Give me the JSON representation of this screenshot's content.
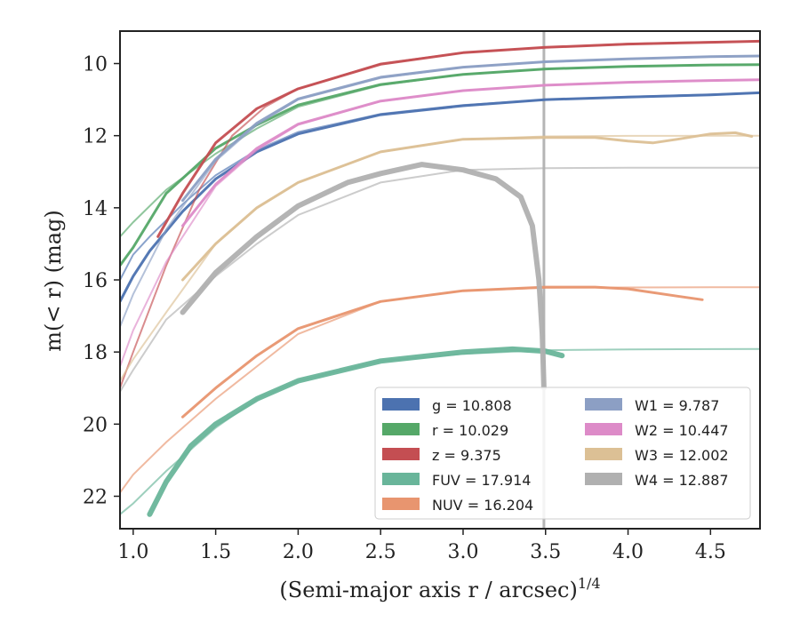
{
  "chart_data": {
    "type": "line",
    "xlabel": "(Semi-major axis r / arcsec)",
    "xlabel_sup": "1/4",
    "ylabel": "m(< r) (mag)",
    "xlim": [
      0.92,
      4.8
    ],
    "ylim": [
      22.9,
      9.1
    ],
    "y_inverted": true,
    "xticks": [
      1.0,
      1.5,
      2.0,
      2.5,
      3.0,
      3.5,
      4.0,
      4.5
    ],
    "xtick_labels": [
      "1.0",
      "1.5",
      "2.0",
      "2.5",
      "3.0",
      "3.5",
      "4.0",
      "4.5"
    ],
    "yticks": [
      10,
      12,
      14,
      16,
      18,
      20,
      22
    ],
    "ytick_labels": [
      "10",
      "12",
      "14",
      "16",
      "18",
      "20",
      "22"
    ],
    "grid": false,
    "legend_position": "lower-right",
    "vline_x": 3.49,
    "series": [
      {
        "name": "g",
        "label": "g = 10.808",
        "color": "#4c72b0",
        "model": [
          [
            0.92,
            16.0
          ],
          [
            1.0,
            15.3
          ],
          [
            1.1,
            14.8
          ],
          [
            1.3,
            13.9
          ],
          [
            1.5,
            13.1
          ],
          [
            1.75,
            12.4
          ],
          [
            2.0,
            11.9
          ],
          [
            2.5,
            11.4
          ],
          [
            3.0,
            11.15
          ],
          [
            3.5,
            11.0
          ],
          [
            4.0,
            10.92
          ],
          [
            4.5,
            10.86
          ],
          [
            4.8,
            10.808
          ]
        ],
        "observed": [
          [
            0.92,
            16.6
          ],
          [
            1.0,
            15.9
          ],
          [
            1.1,
            15.2
          ],
          [
            1.3,
            14.1
          ],
          [
            1.5,
            13.2
          ],
          [
            1.75,
            12.45
          ],
          [
            2.0,
            11.95
          ],
          [
            2.5,
            11.42
          ],
          [
            3.0,
            11.17
          ],
          [
            3.5,
            11.0
          ],
          [
            4.0,
            10.93
          ],
          [
            4.5,
            10.87
          ],
          [
            4.8,
            10.81
          ]
        ]
      },
      {
        "name": "r",
        "label": "r = 10.029",
        "color": "#55a868",
        "model": [
          [
            0.92,
            14.8
          ],
          [
            1.0,
            14.4
          ],
          [
            1.2,
            13.5
          ],
          [
            1.5,
            12.5
          ],
          [
            1.75,
            11.8
          ],
          [
            2.0,
            11.2
          ],
          [
            2.5,
            10.6
          ],
          [
            3.0,
            10.3
          ],
          [
            3.5,
            10.15
          ],
          [
            4.0,
            10.08
          ],
          [
            4.5,
            10.04
          ],
          [
            4.8,
            10.029
          ]
        ],
        "observed": [
          [
            0.92,
            15.6
          ],
          [
            1.0,
            15.1
          ],
          [
            1.2,
            13.6
          ],
          [
            1.5,
            12.35
          ],
          [
            1.75,
            11.7
          ],
          [
            2.0,
            11.15
          ],
          [
            2.5,
            10.58
          ],
          [
            3.0,
            10.3
          ],
          [
            3.5,
            10.15
          ],
          [
            4.0,
            10.08
          ],
          [
            4.5,
            10.04
          ],
          [
            4.8,
            10.03
          ]
        ]
      },
      {
        "name": "z",
        "label": "z = 9.375",
        "color": "#c44e52",
        "model": [
          [
            0.92,
            19.0
          ],
          [
            1.0,
            18.0
          ],
          [
            1.2,
            15.6
          ],
          [
            1.4,
            13.5
          ],
          [
            1.6,
            12.0
          ],
          [
            1.8,
            11.2
          ],
          [
            2.0,
            10.7
          ],
          [
            2.5,
            10.0
          ],
          [
            3.0,
            9.7
          ],
          [
            3.5,
            9.55
          ],
          [
            4.0,
            9.45
          ],
          [
            4.5,
            9.4
          ],
          [
            4.8,
            9.375
          ]
        ],
        "observed": [
          [
            1.15,
            14.8
          ],
          [
            1.3,
            13.6
          ],
          [
            1.5,
            12.2
          ],
          [
            1.75,
            11.25
          ],
          [
            2.0,
            10.7
          ],
          [
            2.5,
            10.02
          ],
          [
            3.0,
            9.7
          ],
          [
            3.5,
            9.55
          ],
          [
            4.0,
            9.46
          ],
          [
            4.5,
            9.41
          ],
          [
            4.8,
            9.38
          ]
        ]
      },
      {
        "name": "FUV",
        "label": "FUV = 17.914",
        "color": "#69b59a",
        "model": [
          [
            0.92,
            22.5
          ],
          [
            1.0,
            22.2
          ],
          [
            1.2,
            21.3
          ],
          [
            1.5,
            20.1
          ],
          [
            1.75,
            19.3
          ],
          [
            2.0,
            18.8
          ],
          [
            2.5,
            18.25
          ],
          [
            3.0,
            18.05
          ],
          [
            3.5,
            17.95
          ],
          [
            4.0,
            17.93
          ],
          [
            4.5,
            17.92
          ],
          [
            4.8,
            17.914
          ]
        ],
        "observed": [
          [
            1.1,
            22.5
          ],
          [
            1.2,
            21.6
          ],
          [
            1.35,
            20.6
          ],
          [
            1.5,
            20.0
          ],
          [
            1.75,
            19.3
          ],
          [
            2.0,
            18.8
          ],
          [
            2.5,
            18.25
          ],
          [
            3.0,
            18.0
          ],
          [
            3.3,
            17.92
          ],
          [
            3.5,
            17.98
          ],
          [
            3.6,
            18.1
          ]
        ]
      },
      {
        "name": "NUV",
        "label": "NUV = 16.204",
        "color": "#e8956f",
        "model": [
          [
            0.92,
            21.9
          ],
          [
            1.0,
            21.4
          ],
          [
            1.2,
            20.5
          ],
          [
            1.5,
            19.3
          ],
          [
            1.75,
            18.4
          ],
          [
            2.0,
            17.5
          ],
          [
            2.5,
            16.6
          ],
          [
            3.0,
            16.3
          ],
          [
            3.5,
            16.22
          ],
          [
            4.0,
            16.21
          ],
          [
            4.5,
            16.205
          ],
          [
            4.8,
            16.204
          ]
        ],
        "observed": [
          [
            1.3,
            19.8
          ],
          [
            1.5,
            19.0
          ],
          [
            1.75,
            18.1
          ],
          [
            2.0,
            17.35
          ],
          [
            2.5,
            16.6
          ],
          [
            3.0,
            16.3
          ],
          [
            3.5,
            16.2
          ],
          [
            3.8,
            16.2
          ],
          [
            4.0,
            16.25
          ],
          [
            4.3,
            16.45
          ],
          [
            4.45,
            16.55
          ]
        ]
      },
      {
        "name": "W1",
        "label": "W1 = 9.787",
        "color": "#8c9fc4",
        "model": [
          [
            0.92,
            17.3
          ],
          [
            1.0,
            16.4
          ],
          [
            1.2,
            14.6
          ],
          [
            1.5,
            12.7
          ],
          [
            1.75,
            11.7
          ],
          [
            2.0,
            11.0
          ],
          [
            2.5,
            10.4
          ],
          [
            3.0,
            10.1
          ],
          [
            3.5,
            9.95
          ],
          [
            4.0,
            9.87
          ],
          [
            4.5,
            9.81
          ],
          [
            4.8,
            9.787
          ]
        ],
        "observed": [
          [
            1.3,
            13.8
          ],
          [
            1.5,
            12.65
          ],
          [
            1.75,
            11.65
          ],
          [
            2.0,
            10.98
          ],
          [
            2.5,
            10.38
          ],
          [
            3.0,
            10.1
          ],
          [
            3.5,
            9.95
          ],
          [
            4.0,
            9.87
          ],
          [
            4.5,
            9.81
          ],
          [
            4.8,
            9.79
          ]
        ]
      },
      {
        "name": "W2",
        "label": "W2 = 10.447",
        "color": "#dd8bc8",
        "model": [
          [
            0.92,
            18.4
          ],
          [
            1.0,
            17.4
          ],
          [
            1.2,
            15.5
          ],
          [
            1.5,
            13.4
          ],
          [
            1.75,
            12.4
          ],
          [
            2.0,
            11.7
          ],
          [
            2.5,
            11.05
          ],
          [
            3.0,
            10.75
          ],
          [
            3.5,
            10.6
          ],
          [
            4.0,
            10.52
          ],
          [
            4.5,
            10.47
          ],
          [
            4.8,
            10.447
          ]
        ],
        "observed": [
          [
            1.3,
            14.5
          ],
          [
            1.5,
            13.35
          ],
          [
            1.75,
            12.35
          ],
          [
            2.0,
            11.68
          ],
          [
            2.5,
            11.04
          ],
          [
            3.0,
            10.75
          ],
          [
            3.5,
            10.6
          ],
          [
            4.0,
            10.52
          ],
          [
            4.5,
            10.47
          ],
          [
            4.8,
            10.45
          ]
        ]
      },
      {
        "name": "W3",
        "label": "W3 = 12.002",
        "color": "#dcc095",
        "model": [
          [
            0.92,
            18.8
          ],
          [
            1.0,
            18.2
          ],
          [
            1.2,
            16.9
          ],
          [
            1.5,
            15.0
          ],
          [
            1.75,
            14.0
          ],
          [
            2.0,
            13.3
          ],
          [
            2.5,
            12.45
          ],
          [
            3.0,
            12.1
          ],
          [
            3.5,
            12.02
          ],
          [
            4.0,
            12.005
          ],
          [
            4.5,
            12.003
          ],
          [
            4.8,
            12.002
          ]
        ],
        "observed": [
          [
            1.3,
            16.0
          ],
          [
            1.5,
            15.0
          ],
          [
            1.75,
            14.0
          ],
          [
            2.0,
            13.3
          ],
          [
            2.5,
            12.45
          ],
          [
            3.0,
            12.1
          ],
          [
            3.5,
            12.05
          ],
          [
            3.8,
            12.05
          ],
          [
            4.0,
            12.15
          ],
          [
            4.15,
            12.2
          ],
          [
            4.3,
            12.1
          ],
          [
            4.5,
            11.95
          ],
          [
            4.65,
            11.92
          ],
          [
            4.75,
            12.02
          ]
        ]
      },
      {
        "name": "W4",
        "label": "W4 = 12.887",
        "color": "#b0b0b0",
        "model": [
          [
            0.92,
            19.1
          ],
          [
            1.0,
            18.5
          ],
          [
            1.2,
            17.1
          ],
          [
            1.5,
            15.9
          ],
          [
            1.75,
            15.0
          ],
          [
            2.0,
            14.2
          ],
          [
            2.5,
            13.3
          ],
          [
            3.0,
            12.95
          ],
          [
            3.5,
            12.9
          ],
          [
            4.0,
            12.89
          ],
          [
            4.5,
            12.888
          ],
          [
            4.8,
            12.887
          ]
        ],
        "observed": [
          [
            1.3,
            16.9
          ],
          [
            1.5,
            15.8
          ],
          [
            1.75,
            14.8
          ],
          [
            2.0,
            13.95
          ],
          [
            2.3,
            13.3
          ],
          [
            2.5,
            13.05
          ],
          [
            2.75,
            12.8
          ],
          [
            3.0,
            12.95
          ],
          [
            3.2,
            13.2
          ],
          [
            3.35,
            13.7
          ],
          [
            3.42,
            14.5
          ],
          [
            3.46,
            16.0
          ],
          [
            3.48,
            17.5
          ],
          [
            3.49,
            19.0
          ]
        ]
      }
    ]
  }
}
